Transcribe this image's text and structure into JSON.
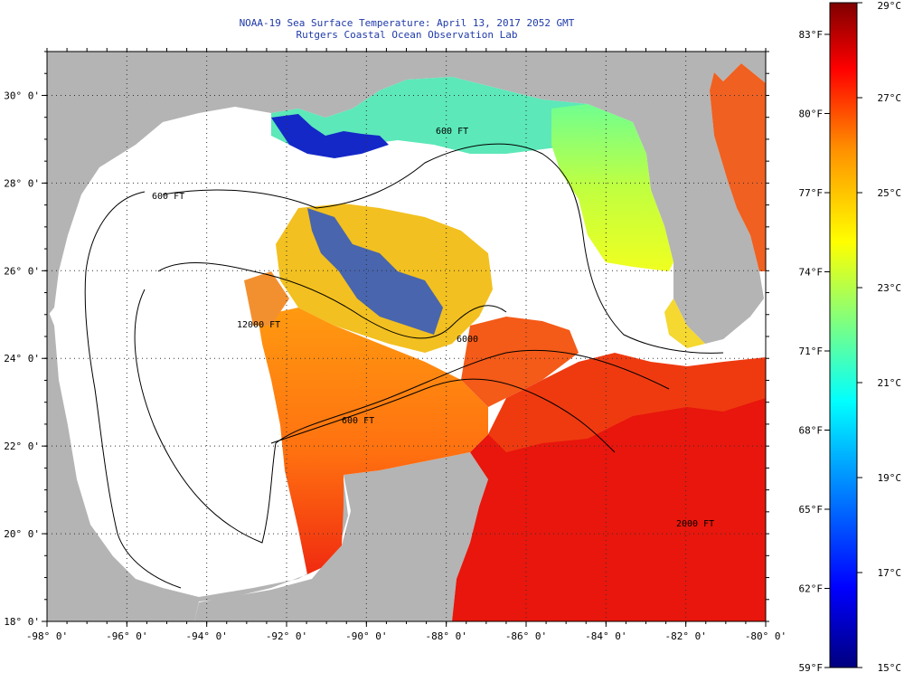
{
  "header": {
    "title": "NOAA-19 Sea Surface Temperature:  April 13, 2017 2052 GMT",
    "subtitle": "Rutgers Coastal Ocean Observation Lab"
  },
  "map": {
    "lat_ticks": [
      {
        "lat": 30,
        "label": "30° 0'"
      },
      {
        "lat": 28,
        "label": "28° 0'"
      },
      {
        "lat": 26,
        "label": "26° 0'"
      },
      {
        "lat": 24,
        "label": "24° 0'"
      },
      {
        "lat": 22,
        "label": "22° 0'"
      },
      {
        "lat": 20,
        "label": "20° 0'"
      },
      {
        "lat": 18,
        "label": "18° 0'"
      }
    ],
    "lon_ticks": [
      {
        "lon": -98,
        "label": "-98° 0'"
      },
      {
        "lon": -96,
        "label": "-96° 0'"
      },
      {
        "lon": -94,
        "label": "-94° 0'"
      },
      {
        "lon": -92,
        "label": "-92° 0'"
      },
      {
        "lon": -90,
        "label": "-90° 0'"
      },
      {
        "lon": -88,
        "label": "-88° 0'"
      },
      {
        "lon": -86,
        "label": "-86° 0'"
      },
      {
        "lon": -84,
        "label": "-84° 0'"
      },
      {
        "lon": -82,
        "label": "-82° 0'"
      },
      {
        "lon": -80,
        "label": "-80° 0'"
      }
    ],
    "lat_range": [
      18,
      31
    ],
    "lon_range": [
      -98,
      -80
    ],
    "contour_labels": [
      "600 FT",
      "600 FT",
      "12000 FT",
      "6000",
      "600 FT",
      "2000 FT"
    ],
    "colors": {
      "land": "#b4b4b4",
      "no_data": "#ffffff"
    }
  },
  "colorbar": {
    "f_labels": [
      "83°F",
      "80°F",
      "77°F",
      "74°F",
      "71°F",
      "68°F",
      "65°F",
      "62°F",
      "59°F"
    ],
    "c_labels": [
      "29°C",
      "27°C",
      "25°C",
      "23°C",
      "21°C",
      "19°C",
      "17°C",
      "15°C"
    ],
    "range_c": [
      15,
      29
    ],
    "range_f": [
      59,
      84
    ],
    "colors": [
      "#00007f",
      "#0000ff",
      "#00a0ff",
      "#00ffff",
      "#7fff7f",
      "#ffff00",
      "#ff9000",
      "#ff0000",
      "#7f0000"
    ]
  }
}
